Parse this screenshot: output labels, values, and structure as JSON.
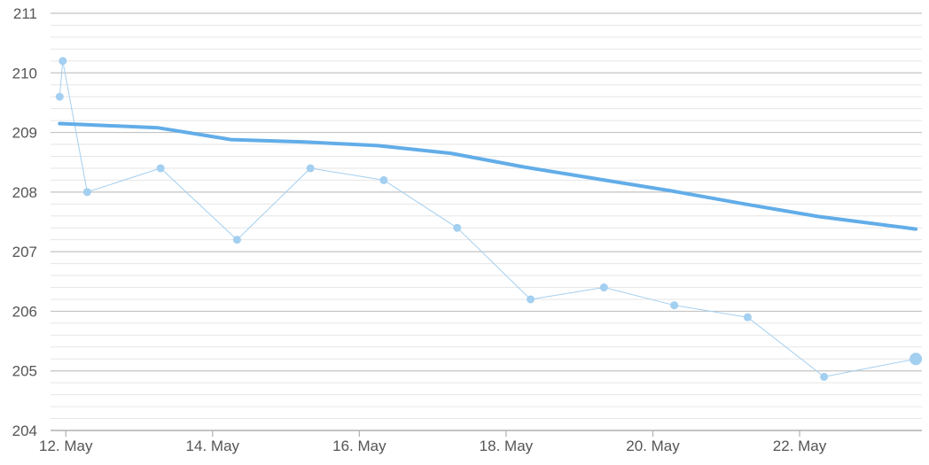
{
  "chart_data": {
    "type": "line",
    "title": "",
    "xlabel": "",
    "ylabel": "",
    "ylim": [
      204,
      211
    ],
    "y_ticks": [
      {
        "value": 204,
        "label": "204"
      },
      {
        "value": 205,
        "label": "205"
      },
      {
        "value": 206,
        "label": "206"
      },
      {
        "value": 207,
        "label": "207"
      },
      {
        "value": 208,
        "label": "208"
      },
      {
        "value": 209,
        "label": "209"
      },
      {
        "value": 210,
        "label": "210"
      },
      {
        "value": 211,
        "label": "211"
      }
    ],
    "y_minor_per_major": 5,
    "x_ticks": [
      {
        "date": "2024-05-12",
        "label": "12. May"
      },
      {
        "date": "2024-05-14",
        "label": "14. May"
      },
      {
        "date": "2024-05-16",
        "label": "16. May"
      },
      {
        "date": "2024-05-18",
        "label": "18. May"
      },
      {
        "date": "2024-05-20",
        "label": "20. May"
      },
      {
        "date": "2024-05-22",
        "label": "22. May"
      }
    ],
    "xlim": [
      "2024-05-11T19:00",
      "2024-05-23T16:00"
    ],
    "grid": true,
    "legend": "none",
    "series": [
      {
        "style": "points",
        "color": "#a3cff0",
        "points": [
          {
            "x": "2024-05-11T22:00",
            "y": 209.6
          },
          {
            "x": "2024-05-11T23:00",
            "y": 210.2
          },
          {
            "x": "2024-05-12T07:00",
            "y": 208.0
          },
          {
            "x": "2024-05-13T07:00",
            "y": 208.4
          },
          {
            "x": "2024-05-14T08:00",
            "y": 207.2
          },
          {
            "x": "2024-05-15T08:00",
            "y": 208.4
          },
          {
            "x": "2024-05-16T08:00",
            "y": 208.2
          },
          {
            "x": "2024-05-17T08:00",
            "y": 207.4
          },
          {
            "x": "2024-05-18T08:00",
            "y": 206.2
          },
          {
            "x": "2024-05-19T08:00",
            "y": 206.4
          },
          {
            "x": "2024-05-20T07:00",
            "y": 206.1
          },
          {
            "x": "2024-05-21T07:00",
            "y": 205.9
          },
          {
            "x": "2024-05-22T08:00",
            "y": 204.9
          },
          {
            "x": "2024-05-23T14:00",
            "y": 205.2,
            "highlight": true
          }
        ]
      },
      {
        "style": "trend",
        "color": "#62ade8",
        "points": [
          {
            "x": "2024-05-11T22:00",
            "y": 209.15
          },
          {
            "x": "2024-05-13T06:00",
            "y": 209.08
          },
          {
            "x": "2024-05-14T06:00",
            "y": 208.88
          },
          {
            "x": "2024-05-15T06:00",
            "y": 208.84
          },
          {
            "x": "2024-05-16T06:00",
            "y": 208.78
          },
          {
            "x": "2024-05-17T06:00",
            "y": 208.65
          },
          {
            "x": "2024-05-18T06:00",
            "y": 208.42
          },
          {
            "x": "2024-05-19T06:00",
            "y": 208.22
          },
          {
            "x": "2024-05-20T06:00",
            "y": 208.02
          },
          {
            "x": "2024-05-21T06:00",
            "y": 207.8
          },
          {
            "x": "2024-05-22T06:00",
            "y": 207.59
          },
          {
            "x": "2024-05-23T14:00",
            "y": 207.38
          }
        ]
      }
    ]
  }
}
